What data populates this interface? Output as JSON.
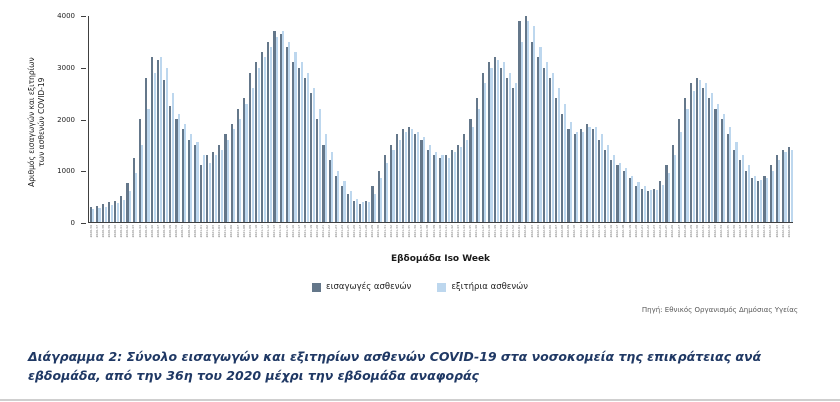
{
  "figure": {
    "caption": "Διάγραμμα 2: Σύνολο εισαγωγών και εξιτηρίων ασθενών COVID-19 στα νοσοκομεία της επικράτειας ανά εβδομάδα, από την 36η του 2020 μέχρι την εβδομάδα αναφοράς",
    "source": "Πηγή: Εθνικός Οργανισμός Δημόσιας Υγείας"
  },
  "chart_data": {
    "type": "bar",
    "title": "",
    "xlabel": "Εβδομάδα Iso Week",
    "ylabel_line1": "Αριθμός εισαγωγών και εξιτηρίων",
    "ylabel_line2": "των ασθενών COVID-19",
    "ylim": [
      0,
      4000
    ],
    "yticks": [
      0,
      1000,
      2000,
      3000,
      4000
    ],
    "grid": false,
    "legend_position": "bottom",
    "categories": [
      "2020-36",
      "2020-37",
      "2020-38",
      "2020-39",
      "2020-40",
      "2020-41",
      "2020-42",
      "2020-43",
      "2020-44",
      "2020-45",
      "2020-46",
      "2020-47",
      "2020-48",
      "2020-49",
      "2020-50",
      "2020-51",
      "2020-52",
      "2020-53",
      "2021-01",
      "2021-02",
      "2021-03",
      "2021-04",
      "2021-05",
      "2021-06",
      "2021-07",
      "2021-08",
      "2021-09",
      "2021-10",
      "2021-11",
      "2021-12",
      "2021-13",
      "2021-14",
      "2021-15",
      "2021-16",
      "2021-17",
      "2021-18",
      "2021-19",
      "2021-20",
      "2021-21",
      "2021-22",
      "2021-23",
      "2021-24",
      "2021-25",
      "2021-26",
      "2021-27",
      "2021-28",
      "2021-29",
      "2021-30",
      "2021-31",
      "2021-32",
      "2021-33",
      "2021-34",
      "2021-35",
      "2021-36",
      "2021-37",
      "2021-38",
      "2021-39",
      "2021-40",
      "2021-41",
      "2021-42",
      "2021-43",
      "2021-44",
      "2021-45",
      "2021-46",
      "2021-47",
      "2021-48",
      "2021-49",
      "2021-50",
      "2021-51",
      "2021-52",
      "2022-01",
      "2022-02",
      "2022-03",
      "2022-04",
      "2022-05",
      "2022-06",
      "2022-07",
      "2022-08",
      "2022-09",
      "2022-10",
      "2022-11",
      "2022-12",
      "2022-13",
      "2022-14",
      "2022-15",
      "2022-16",
      "2022-17",
      "2022-18",
      "2022-19",
      "2022-20",
      "2022-21",
      "2022-22",
      "2022-23",
      "2022-24",
      "2022-25",
      "2022-26",
      "2022-27",
      "2022-28",
      "2022-29",
      "2022-30",
      "2022-31",
      "2022-32",
      "2022-33",
      "2022-34",
      "2022-35",
      "2022-36",
      "2022-37",
      "2022-38",
      "2022-39",
      "2022-40",
      "2022-41",
      "2022-42",
      "2022-43",
      "2022-44",
      "2022-45"
    ],
    "series": [
      {
        "name": "εισαγωγές ασθενών",
        "color": "#64778a",
        "values": [
          300,
          320,
          350,
          380,
          400,
          500,
          750,
          1250,
          2000,
          2800,
          3200,
          3150,
          2750,
          2250,
          2000,
          1800,
          1600,
          1500,
          1100,
          1300,
          1350,
          1500,
          1700,
          1900,
          2200,
          2400,
          2900,
          3100,
          3300,
          3500,
          3700,
          3650,
          3400,
          3100,
          3000,
          2800,
          2500,
          2000,
          1500,
          1200,
          900,
          700,
          550,
          400,
          350,
          400,
          700,
          1000,
          1300,
          1500,
          1700,
          1800,
          1850,
          1700,
          1600,
          1400,
          1300,
          1250,
          1300,
          1400,
          1500,
          1700,
          2000,
          2400,
          2900,
          3100,
          3200,
          3000,
          2800,
          2600,
          3900,
          4000,
          3500,
          3200,
          3000,
          2800,
          2400,
          2100,
          1800,
          1700,
          1800,
          1900,
          1800,
          1600,
          1400,
          1200,
          1100,
          1000,
          850,
          700,
          650,
          600,
          650,
          800,
          1100,
          1500,
          2000,
          2400,
          2700,
          2800,
          2600,
          2400,
          2200,
          2000,
          1700,
          1400,
          1200,
          1000,
          850,
          800,
          900,
          1100,
          1300,
          1400,
          1450
        ]
      },
      {
        "name": "εξιτήρια ασθενών",
        "color": "#bdd7ee",
        "values": [
          250,
          280,
          300,
          330,
          360,
          420,
          600,
          950,
          1500,
          2200,
          2900,
          3200,
          3000,
          2500,
          2100,
          1900,
          1700,
          1550,
          1300,
          1150,
          1300,
          1400,
          1600,
          1800,
          2000,
          2300,
          2600,
          3000,
          3200,
          3400,
          3600,
          3700,
          3500,
          3300,
          3100,
          2900,
          2600,
          2200,
          1700,
          1350,
          1000,
          800,
          600,
          450,
          380,
          380,
          550,
          850,
          1150,
          1400,
          1600,
          1750,
          1800,
          1750,
          1650,
          1500,
          1350,
          1300,
          1250,
          1350,
          1450,
          1600,
          1850,
          2200,
          2700,
          3000,
          3150,
          3100,
          2900,
          2700,
          3500,
          3900,
          3800,
          3400,
          3100,
          2900,
          2600,
          2300,
          1950,
          1750,
          1750,
          1850,
          1850,
          1700,
          1500,
          1300,
          1150,
          1050,
          900,
          780,
          700,
          620,
          620,
          720,
          950,
          1300,
          1750,
          2200,
          2550,
          2750,
          2700,
          2500,
          2300,
          2100,
          1850,
          1550,
          1300,
          1100,
          900,
          820,
          850,
          1000,
          1200,
          1350,
          1400
        ]
      }
    ]
  }
}
